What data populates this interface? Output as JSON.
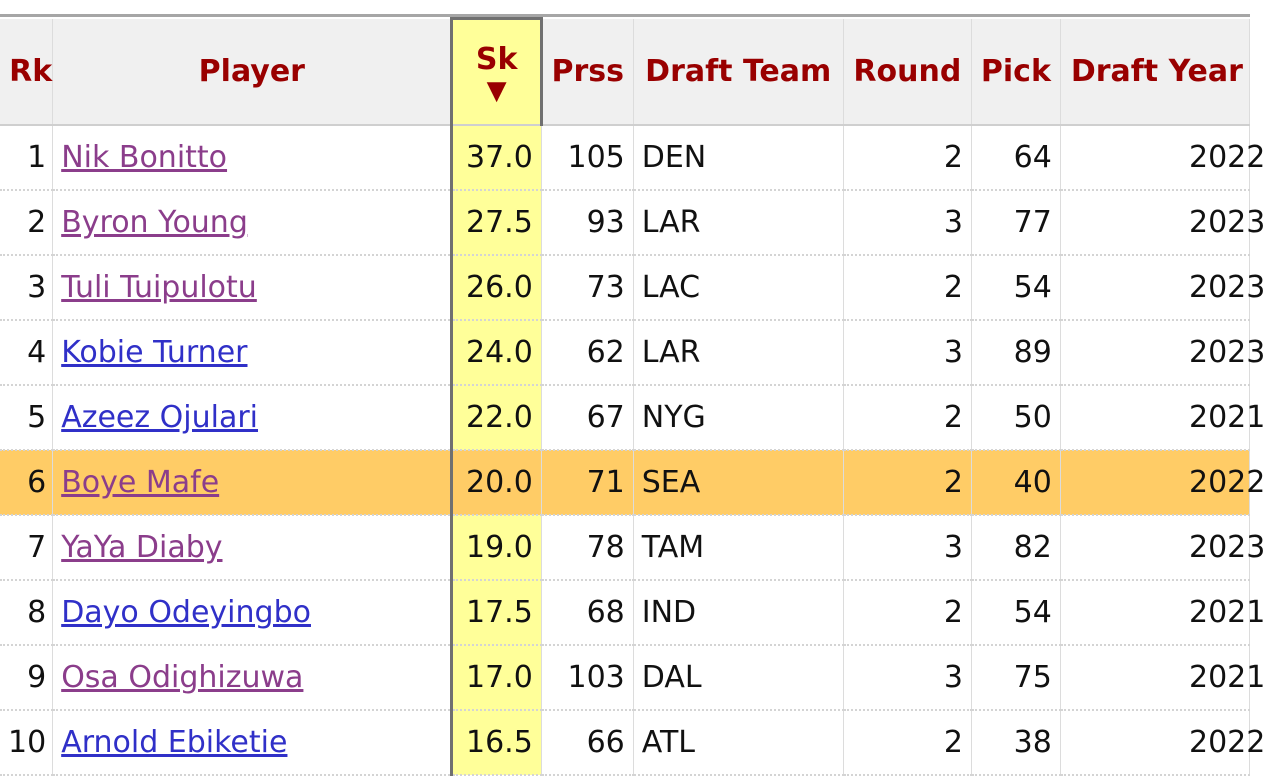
{
  "table": {
    "columns": {
      "rk": "Rk",
      "player": "Player",
      "sk": "Sk",
      "sk_sort_arrow": "▼",
      "prss": "Prss",
      "draft_team": "Draft Team",
      "round": "Round",
      "pick": "Pick",
      "draft_year": "Draft Year"
    },
    "rows": [
      {
        "rk": "1",
        "player": "Nik Bonitto",
        "visited": true,
        "sk": "37.0",
        "prss": "105",
        "team": "DEN",
        "round": "2",
        "pick": "64",
        "year": "2022"
      },
      {
        "rk": "2",
        "player": "Byron Young",
        "visited": true,
        "sk": "27.5",
        "prss": "93",
        "team": "LAR",
        "round": "3",
        "pick": "77",
        "year": "2023"
      },
      {
        "rk": "3",
        "player": "Tuli Tuipulotu",
        "visited": true,
        "sk": "26.0",
        "prss": "73",
        "team": "LAC",
        "round": "2",
        "pick": "54",
        "year": "2023"
      },
      {
        "rk": "4",
        "player": "Kobie Turner",
        "visited": false,
        "sk": "24.0",
        "prss": "62",
        "team": "LAR",
        "round": "3",
        "pick": "89",
        "year": "2023"
      },
      {
        "rk": "5",
        "player": "Azeez Ojulari",
        "visited": false,
        "sk": "22.0",
        "prss": "67",
        "team": "NYG",
        "round": "2",
        "pick": "50",
        "year": "2021"
      },
      {
        "rk": "6",
        "player": "Boye Mafe",
        "visited": true,
        "sk": "20.0",
        "prss": "71",
        "team": "SEA",
        "round": "2",
        "pick": "40",
        "year": "2022",
        "highlight": true
      },
      {
        "rk": "7",
        "player": "YaYa Diaby",
        "visited": true,
        "sk": "19.0",
        "prss": "78",
        "team": "TAM",
        "round": "3",
        "pick": "82",
        "year": "2023"
      },
      {
        "rk": "8",
        "player": "Dayo Odeyingbo",
        "visited": false,
        "sk": "17.5",
        "prss": "68",
        "team": "IND",
        "round": "2",
        "pick": "54",
        "year": "2021"
      },
      {
        "rk": "9",
        "player": "Osa Odighizuwa",
        "visited": true,
        "sk": "17.0",
        "prss": "103",
        "team": "DAL",
        "round": "3",
        "pick": "75",
        "year": "2021"
      },
      {
        "rk": "10",
        "player": "Arnold Ebiketie",
        "visited": false,
        "sk": "16.5",
        "prss": "66",
        "team": "ATL",
        "round": "2",
        "pick": "38",
        "year": "2022"
      }
    ]
  },
  "colors": {
    "header_text": "#990000",
    "sorted_column": "#ffff99",
    "highlight_row": "#ffcc66",
    "link": "#3030c8",
    "visited_link": "#8b3d8b"
  }
}
